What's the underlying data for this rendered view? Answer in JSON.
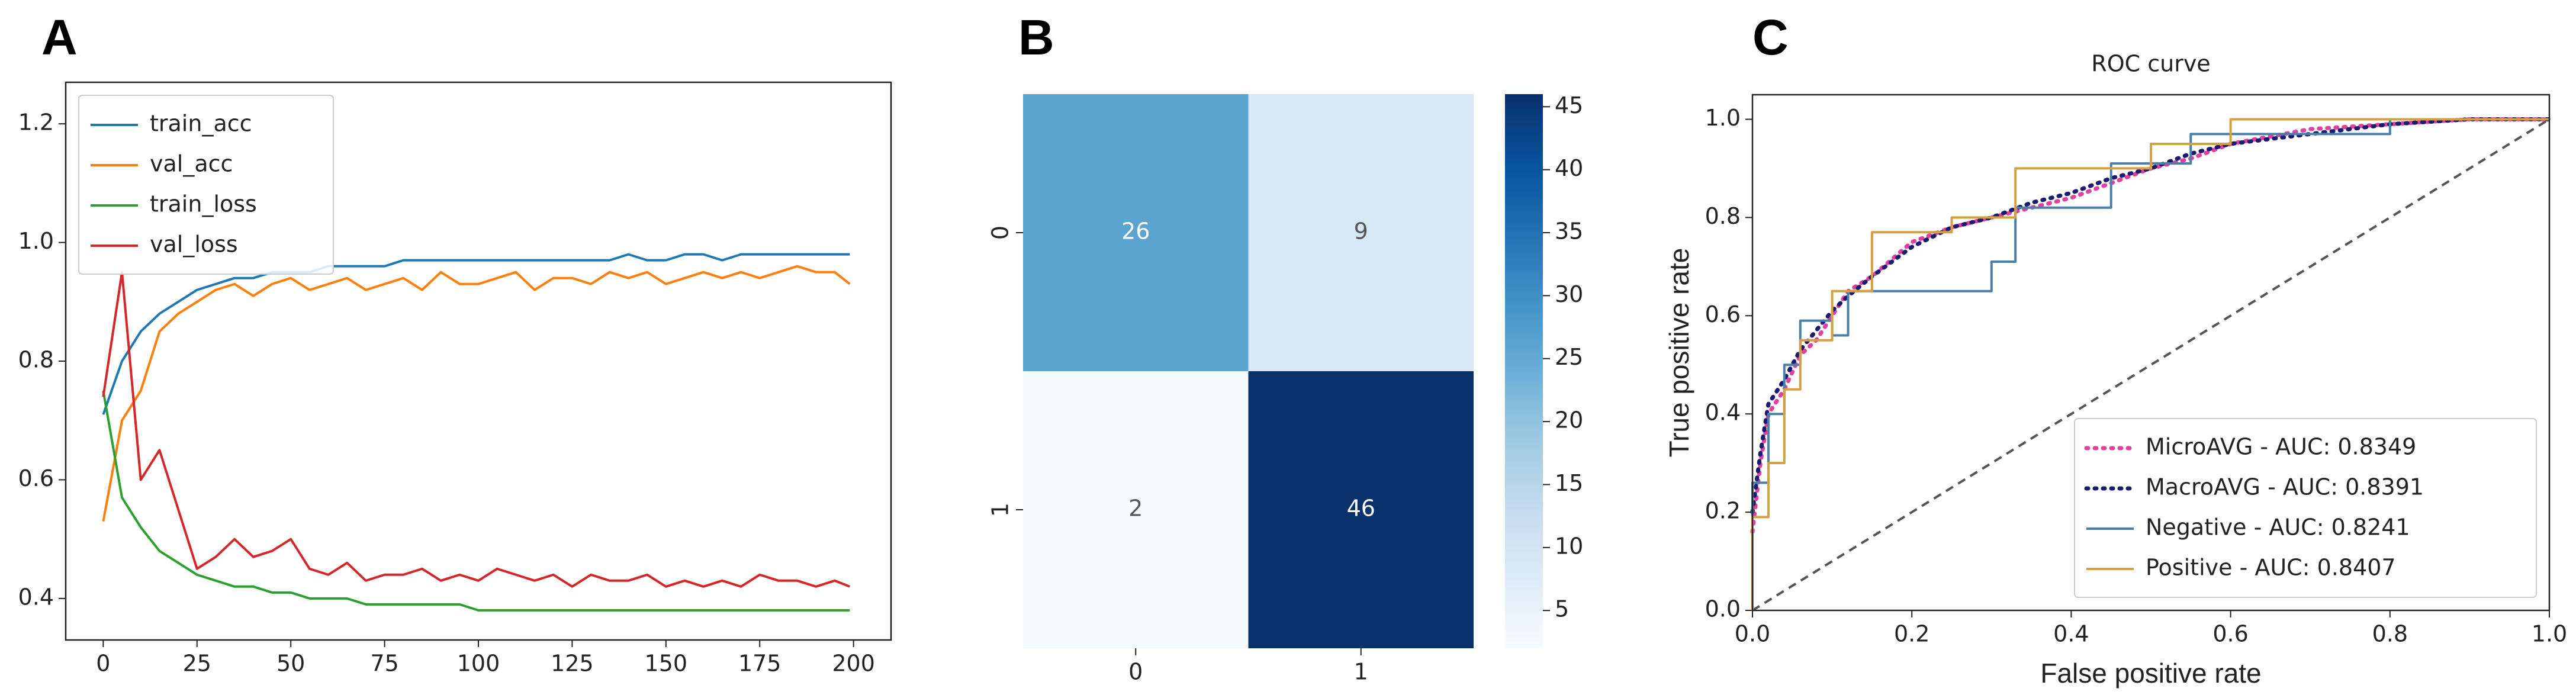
{
  "chart_data": [
    {
      "type": "line",
      "panel_label": "A",
      "x": [
        0,
        5,
        10,
        15,
        20,
        25,
        30,
        35,
        40,
        45,
        50,
        55,
        60,
        65,
        70,
        75,
        80,
        85,
        90,
        95,
        100,
        105,
        110,
        115,
        120,
        125,
        130,
        135,
        140,
        145,
        150,
        155,
        160,
        165,
        170,
        175,
        180,
        185,
        190,
        195,
        199
      ],
      "series": [
        {
          "name": "train_acc",
          "color": "#1f77b4",
          "values": [
            0.71,
            0.8,
            0.85,
            0.88,
            0.9,
            0.92,
            0.93,
            0.94,
            0.94,
            0.95,
            0.95,
            0.95,
            0.96,
            0.96,
            0.96,
            0.96,
            0.97,
            0.97,
            0.97,
            0.97,
            0.97,
            0.97,
            0.97,
            0.97,
            0.97,
            0.97,
            0.97,
            0.97,
            0.98,
            0.97,
            0.97,
            0.98,
            0.98,
            0.97,
            0.98,
            0.98,
            0.98,
            0.98,
            0.98,
            0.98,
            0.98
          ]
        },
        {
          "name": "val_acc",
          "color": "#ff7f0e",
          "values": [
            0.53,
            0.7,
            0.75,
            0.85,
            0.88,
            0.9,
            0.92,
            0.93,
            0.91,
            0.93,
            0.94,
            0.92,
            0.93,
            0.94,
            0.92,
            0.93,
            0.94,
            0.92,
            0.95,
            0.93,
            0.93,
            0.94,
            0.95,
            0.92,
            0.94,
            0.94,
            0.93,
            0.95,
            0.94,
            0.95,
            0.93,
            0.94,
            0.95,
            0.94,
            0.95,
            0.94,
            0.95,
            0.96,
            0.95,
            0.95,
            0.93
          ]
        },
        {
          "name": "train_loss",
          "color": "#2ca02c",
          "values": [
            0.75,
            0.57,
            0.52,
            0.48,
            0.46,
            0.44,
            0.43,
            0.42,
            0.42,
            0.41,
            0.41,
            0.4,
            0.4,
            0.4,
            0.39,
            0.39,
            0.39,
            0.39,
            0.39,
            0.39,
            0.38,
            0.38,
            0.38,
            0.38,
            0.38,
            0.38,
            0.38,
            0.38,
            0.38,
            0.38,
            0.38,
            0.38,
            0.38,
            0.38,
            0.38,
            0.38,
            0.38,
            0.38,
            0.38,
            0.38,
            0.38
          ]
        },
        {
          "name": "val_loss",
          "color": "#d62728",
          "values": [
            0.74,
            0.95,
            0.6,
            0.65,
            0.55,
            0.45,
            0.47,
            0.5,
            0.47,
            0.48,
            0.5,
            0.45,
            0.44,
            0.46,
            0.43,
            0.44,
            0.44,
            0.45,
            0.43,
            0.44,
            0.43,
            0.45,
            0.44,
            0.43,
            0.44,
            0.42,
            0.44,
            0.43,
            0.43,
            0.44,
            0.42,
            0.43,
            0.42,
            0.43,
            0.42,
            0.44,
            0.43,
            0.43,
            0.42,
            0.43,
            0.42
          ]
        }
      ],
      "xlim": [
        -10,
        210
      ],
      "xticks": [
        0,
        25,
        50,
        75,
        100,
        125,
        150,
        175,
        200
      ],
      "ylim": [
        0.33,
        1.27
      ],
      "yticks": [
        0.4,
        0.6,
        0.8,
        {
          "value": 1,
          "label": "1.0"
        },
        1.2
      ],
      "legend": "upper left"
    },
    {
      "type": "heatmap",
      "panel_label": "B",
      "categories": [
        "0",
        "1"
      ],
      "rows": [
        "0",
        "1"
      ],
      "values": [
        [
          26,
          9
        ],
        [
          2,
          46
        ]
      ],
      "clim": [
        2,
        46
      ],
      "cticks": [
        5,
        10,
        15,
        20,
        25,
        30,
        35,
        40,
        45
      ],
      "colormap": [
        "#f7fbff",
        "#deebf7",
        "#c6dbef",
        "#9ecae1",
        "#6baed6",
        "#4292c6",
        "#2171b5",
        "#08519c",
        "#08306b"
      ]
    },
    {
      "type": "line",
      "panel_label": "C",
      "title": "ROC curve",
      "xlabel": "False positive rate",
      "ylabel": "True positive rate",
      "series": [
        {
          "name": "MicroAVG - AUC: 0.8349",
          "color": "#e040a0",
          "style": "dotted",
          "x": [
            0,
            0.01,
            0.02,
            0.04,
            0.06,
            0.08,
            0.1,
            0.12,
            0.15,
            0.2,
            0.25,
            0.3,
            0.35,
            0.4,
            0.45,
            0.5,
            0.55,
            0.6,
            0.7,
            0.8,
            0.9,
            1.0
          ],
          "values": [
            0.16,
            0.3,
            0.4,
            0.45,
            0.52,
            0.55,
            0.6,
            0.65,
            0.68,
            0.75,
            0.78,
            0.8,
            0.82,
            0.84,
            0.87,
            0.9,
            0.92,
            0.95,
            0.98,
            0.99,
            1.0,
            1.0
          ]
        },
        {
          "name": "MacroAVG - AUC: 0.8391",
          "color": "#1a1a6e",
          "style": "dotted",
          "x": [
            0,
            0.01,
            0.02,
            0.04,
            0.06,
            0.08,
            0.1,
            0.12,
            0.15,
            0.2,
            0.25,
            0.3,
            0.35,
            0.4,
            0.45,
            0.5,
            0.55,
            0.6,
            0.7,
            0.8,
            0.9,
            1.0
          ],
          "values": [
            0.2,
            0.32,
            0.42,
            0.47,
            0.53,
            0.57,
            0.61,
            0.64,
            0.68,
            0.74,
            0.78,
            0.8,
            0.83,
            0.85,
            0.88,
            0.9,
            0.93,
            0.95,
            0.97,
            0.99,
            1.0,
            1.0
          ]
        },
        {
          "name": "Negative - AUC: 0.8241",
          "color": "#4a7fa8",
          "style": "solid",
          "x": [
            0,
            0,
            0.02,
            0.02,
            0.04,
            0.04,
            0.06,
            0.06,
            0.1,
            0.1,
            0.12,
            0.12,
            0.3,
            0.3,
            0.33,
            0.33,
            0.45,
            0.45,
            0.55,
            0.55,
            0.8,
            0.8,
            1.0
          ],
          "values": [
            0,
            0.26,
            0.26,
            0.4,
            0.4,
            0.5,
            0.5,
            0.59,
            0.59,
            0.56,
            0.56,
            0.65,
            0.65,
            0.71,
            0.71,
            0.82,
            0.82,
            0.91,
            0.91,
            0.97,
            0.97,
            1.0,
            1.0
          ]
        },
        {
          "name": "Positive - AUC: 0.8407",
          "color": "#d4a040",
          "style": "solid",
          "x": [
            0,
            0,
            0.02,
            0.02,
            0.04,
            0.04,
            0.06,
            0.06,
            0.1,
            0.1,
            0.15,
            0.15,
            0.25,
            0.25,
            0.33,
            0.33,
            0.5,
            0.5,
            0.6,
            0.6,
            1.0
          ],
          "values": [
            0,
            0.19,
            0.19,
            0.3,
            0.3,
            0.45,
            0.45,
            0.55,
            0.55,
            0.65,
            0.65,
            0.77,
            0.77,
            0.8,
            0.8,
            0.9,
            0.9,
            0.95,
            0.95,
            1.0,
            1.0
          ]
        }
      ],
      "xlim": [
        0,
        1
      ],
      "xticks": [
        {
          "value": 0,
          "label": "0.0"
        },
        0.2,
        0.4,
        0.6,
        0.8,
        {
          "value": 1,
          "label": "1.0"
        }
      ],
      "ylim": [
        0,
        1.05
      ],
      "yticks": [
        {
          "value": 0,
          "label": "0.0"
        },
        0.2,
        0.4,
        0.6,
        0.8,
        {
          "value": 1,
          "label": "1.0"
        }
      ],
      "legend": "lower right"
    }
  ]
}
